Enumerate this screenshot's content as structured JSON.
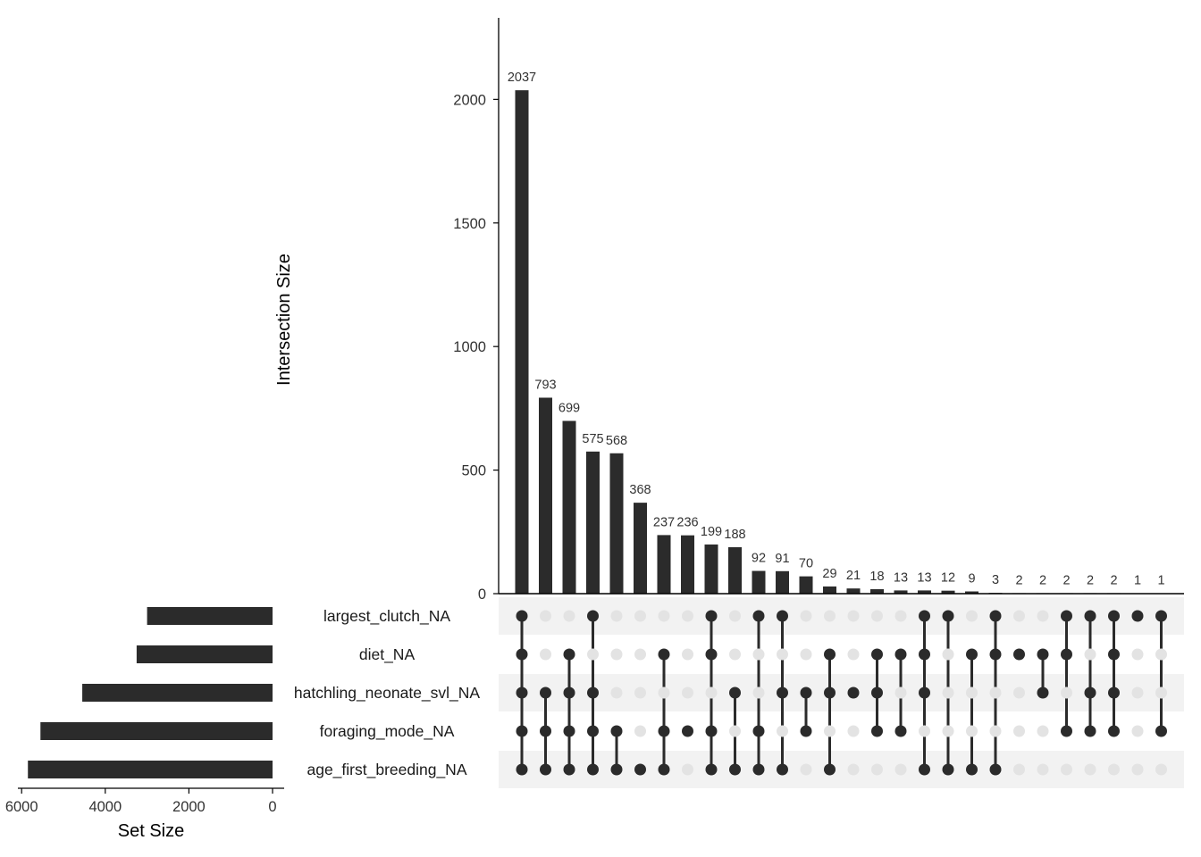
{
  "chart_data": {
    "type": "upset",
    "title": "",
    "colors": {
      "bar": "#2b2b2b",
      "dot_active": "#2b2b2b",
      "dot_inactive": "#e3e3e3",
      "stripe": "#f2f2f2",
      "axis": "#000000",
      "text": "#333333"
    },
    "intersection_axis": {
      "label": "Intersection Size",
      "ylim": [
        0,
        2330
      ],
      "ticks": [
        0,
        500,
        1000,
        1500,
        2000
      ],
      "tick_labels": [
        "0",
        "500",
        "1000",
        "1500",
        "2000"
      ]
    },
    "set_size_axis": {
      "label": "Set Size",
      "xlim": [
        0,
        6400
      ],
      "ticks": [
        6000,
        4000,
        2000,
        0
      ],
      "tick_labels": [
        "6000",
        "4000",
        "2000",
        "0"
      ]
    },
    "sets": [
      {
        "name": "largest_clutch_NA",
        "size": 3000
      },
      {
        "name": "diet_NA",
        "size": 3250
      },
      {
        "name": "hatchling_neonate_svl_NA",
        "size": 4550
      },
      {
        "name": "foraging_mode_NA",
        "size": 5550
      },
      {
        "name": "age_first_breeding_NA",
        "size": 5850
      }
    ],
    "intersections": [
      {
        "value": 2037,
        "label": "2037",
        "members": [
          0,
          1,
          2,
          3,
          4
        ]
      },
      {
        "value": 793,
        "label": "793",
        "members": [
          2,
          3,
          4
        ]
      },
      {
        "value": 699,
        "label": "699",
        "members": [
          1,
          2,
          3,
          4
        ]
      },
      {
        "value": 575,
        "label": "575",
        "members": [
          0,
          2,
          3,
          4
        ]
      },
      {
        "value": 568,
        "label": "568",
        "members": [
          3,
          4
        ]
      },
      {
        "value": 368,
        "label": "368",
        "members": [
          4
        ]
      },
      {
        "value": 237,
        "label": "237",
        "members": [
          1,
          3,
          4
        ]
      },
      {
        "value": 236,
        "label": "236",
        "members": [
          3
        ]
      },
      {
        "value": 199,
        "label": "199",
        "members": [
          0,
          1,
          3,
          4
        ]
      },
      {
        "value": 188,
        "label": "188",
        "members": [
          2,
          4
        ]
      },
      {
        "value": 92,
        "label": "92",
        "members": [
          0,
          3,
          4
        ]
      },
      {
        "value": 91,
        "label": "91",
        "members": [
          0,
          2,
          4
        ]
      },
      {
        "value": 70,
        "label": "70",
        "members": [
          2,
          3
        ]
      },
      {
        "value": 29,
        "label": "29",
        "members": [
          1,
          2,
          4
        ]
      },
      {
        "value": 21,
        "label": "21",
        "members": [
          2
        ]
      },
      {
        "value": 18,
        "label": "18",
        "members": [
          1,
          2,
          3
        ]
      },
      {
        "value": 13,
        "label": "13",
        "members": [
          1,
          3
        ]
      },
      {
        "value": 13,
        "label": "13",
        "members": [
          0,
          1,
          2,
          4
        ]
      },
      {
        "value": 12,
        "label": "12",
        "members": [
          0,
          4
        ]
      },
      {
        "value": 9,
        "label": "9",
        "members": [
          1,
          4
        ]
      },
      {
        "value": 3,
        "label": "3",
        "members": [
          0,
          1,
          4
        ]
      },
      {
        "value": 2,
        "label": "2",
        "members": [
          1
        ]
      },
      {
        "value": 2,
        "label": "2",
        "members": [
          1,
          2
        ]
      },
      {
        "value": 2,
        "label": "2",
        "members": [
          0,
          1,
          3
        ]
      },
      {
        "value": 2,
        "label": "2",
        "members": [
          0,
          2,
          3
        ]
      },
      {
        "value": 2,
        "label": "2",
        "members": [
          0,
          1,
          2,
          3
        ]
      },
      {
        "value": 1,
        "label": "1",
        "members": [
          0
        ]
      },
      {
        "value": 1,
        "label": "1",
        "members": [
          0,
          3
        ]
      }
    ]
  }
}
